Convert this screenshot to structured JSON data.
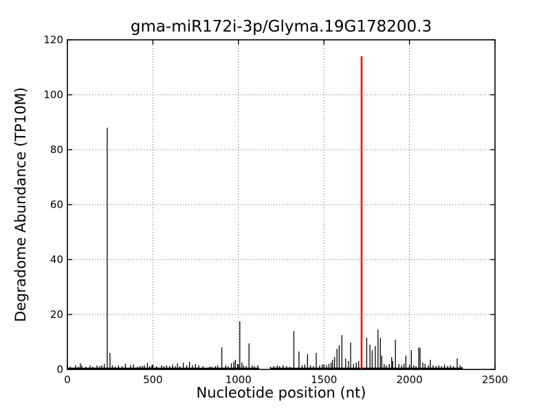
{
  "figure": {
    "title": "gma-miR172i-3p/Glyma.19G178200.3",
    "xlabel": "Nucleotide position (nt)",
    "ylabel": "Degradome Abundance (TP10M)"
  },
  "chart_data": {
    "type": "stem",
    "title": "gma-miR172i-3p/Glyma.19G178200.3",
    "xlabel": "Nucleotide position (nt)",
    "ylabel": "Degradome Abundance (TP10M)",
    "xlim": [
      0,
      2500
    ],
    "ylim": [
      0,
      120
    ],
    "xticks": [
      0,
      500,
      1000,
      1500,
      2000,
      2500
    ],
    "yticks": [
      0,
      20,
      40,
      60,
      80,
      100,
      120
    ],
    "grid": "dotted",
    "legend": "none",
    "colors": {
      "stem": "#000000",
      "target": "#ff0000",
      "background": "#ffffff",
      "axis": "#000000"
    },
    "target_site": {
      "x": 1720,
      "y": 114,
      "color": "#ff0000"
    },
    "baseline_segments": [
      [
        2,
        1122
      ],
      [
        1186,
        2312
      ]
    ],
    "series": [
      {
        "name": "degradome-abundance",
        "color": "#000000",
        "points": [
          [
            17,
            1
          ],
          [
            48,
            1.5
          ],
          [
            64,
            1
          ],
          [
            76,
            2.2
          ],
          [
            84,
            1.5
          ],
          [
            108,
            1
          ],
          [
            133,
            1.5
          ],
          [
            149,
            1
          ],
          [
            173,
            1.5
          ],
          [
            189,
            1.2
          ],
          [
            202,
            1.5
          ],
          [
            216,
            2
          ],
          [
            233,
            88
          ],
          [
            249,
            6
          ],
          [
            263,
            1.5
          ],
          [
            280,
            1
          ],
          [
            299,
            1.5
          ],
          [
            320,
            1.2
          ],
          [
            339,
            2
          ],
          [
            370,
            1.5
          ],
          [
            387,
            1.8
          ],
          [
            410,
            1
          ],
          [
            425,
            1.3
          ],
          [
            438,
            1.2
          ],
          [
            450,
            1.5
          ],
          [
            468,
            2.3
          ],
          [
            481,
            1.2
          ],
          [
            494,
            1.5
          ],
          [
            521,
            1.2
          ],
          [
            551,
            1.5
          ],
          [
            564,
            1.2
          ],
          [
            580,
            1.5
          ],
          [
            598,
            1.2
          ],
          [
            615,
            1.8
          ],
          [
            631,
            1.2
          ],
          [
            644,
            2.2
          ],
          [
            658,
            1.2
          ],
          [
            678,
            2.5
          ],
          [
            698,
            1.5
          ],
          [
            714,
            2.8
          ],
          [
            731,
            1.5
          ],
          [
            749,
            2
          ],
          [
            768,
            1.5
          ],
          [
            792,
            1.2
          ],
          [
            832,
            1
          ],
          [
            844,
            1
          ],
          [
            866,
            1.2
          ],
          [
            879,
            1.5
          ],
          [
            903,
            8
          ],
          [
            926,
            1.5
          ],
          [
            939,
            1.2
          ],
          [
            959,
            2.2
          ],
          [
            973,
            2.8
          ],
          [
            982,
            3.5
          ],
          [
            995,
            2
          ],
          [
            1008,
            17.5
          ],
          [
            1020,
            2.5
          ],
          [
            1030,
            1.5
          ],
          [
            1046,
            1.2
          ],
          [
            1062,
            9.5
          ],
          [
            1080,
            1.5
          ],
          [
            1093,
            1.2
          ],
          [
            1113,
            1.5
          ],
          [
            1187,
            1
          ],
          [
            1207,
            1.2
          ],
          [
            1227,
            1.5
          ],
          [
            1241,
            1.2
          ],
          [
            1261,
            1.5
          ],
          [
            1281,
            1.2
          ],
          [
            1301,
            1
          ],
          [
            1324,
            14
          ],
          [
            1354,
            6.5
          ],
          [
            1372,
            1.5
          ],
          [
            1388,
            1.8
          ],
          [
            1404,
            5.5
          ],
          [
            1421,
            1.5
          ],
          [
            1438,
            1.2
          ],
          [
            1455,
            6
          ],
          [
            1475,
            1.5
          ],
          [
            1491,
            1.8
          ],
          [
            1515,
            1.5
          ],
          [
            1529,
            2
          ],
          [
            1542,
            2.5
          ],
          [
            1551,
            3.5
          ],
          [
            1562,
            4.5
          ],
          [
            1576,
            7.5
          ],
          [
            1589,
            8.8
          ],
          [
            1605,
            12.5
          ],
          [
            1627,
            4
          ],
          [
            1643,
            3
          ],
          [
            1656,
            9.8
          ],
          [
            1673,
            2
          ],
          [
            1689,
            2.5
          ],
          [
            1703,
            3
          ],
          [
            1750,
            11.5
          ],
          [
            1769,
            9
          ],
          [
            1782,
            7
          ],
          [
            1800,
            8.5
          ],
          [
            1816,
            14.5
          ],
          [
            1830,
            11.5
          ],
          [
            1838,
            5
          ],
          [
            1852,
            2
          ],
          [
            1865,
            1.5
          ],
          [
            1882,
            2
          ],
          [
            1896,
            4.5
          ],
          [
            1902,
            3
          ],
          [
            1918,
            10.8
          ],
          [
            1938,
            2
          ],
          [
            1954,
            1.5
          ],
          [
            1968,
            2
          ],
          [
            1979,
            5
          ],
          [
            2011,
            7
          ],
          [
            2025,
            1.5
          ],
          [
            2038,
            1.2
          ],
          [
            2054,
            8
          ],
          [
            2062,
            7.8
          ],
          [
            2078,
            2.5
          ],
          [
            2091,
            2
          ],
          [
            2111,
            1.5
          ],
          [
            2122,
            3.5
          ],
          [
            2138,
            1.5
          ],
          [
            2156,
            1.2
          ],
          [
            2172,
            1.5
          ],
          [
            2188,
            1.2
          ],
          [
            2205,
            1.8
          ],
          [
            2223,
            1.2
          ],
          [
            2239,
            1.5
          ],
          [
            2256,
            1.2
          ],
          [
            2279,
            4
          ],
          [
            2295,
            1.5
          ],
          [
            2306,
            1
          ]
        ]
      },
      {
        "name": "mirna-cleavage-site",
        "color": "#ff0000",
        "points": [
          [
            1720,
            114
          ]
        ]
      }
    ]
  }
}
